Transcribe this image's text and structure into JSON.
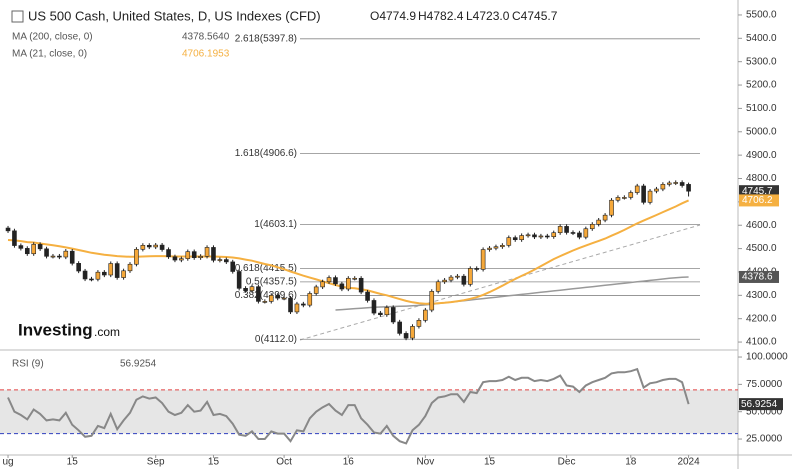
{
  "chart_data": {
    "type": "candlestick",
    "title": "US 500 Cash, United States, D, US Indexes (CFD)",
    "ohlc_header": [
      "O4774.9",
      "H4782.4",
      "L4723.0",
      "C4745.7"
    ],
    "up_color": "#f5a83a",
    "down_color": "#222222",
    "xlim": [
      -1.25,
      113.7
    ],
    "xticks": [
      {
        "value": 0,
        "label": "ug"
      },
      {
        "value": 10,
        "label": "15"
      },
      {
        "value": 23,
        "label": "Sep"
      },
      {
        "value": 32,
        "label": "15"
      },
      {
        "value": 43,
        "label": "Oct"
      },
      {
        "value": 53,
        "label": "16"
      },
      {
        "value": 65,
        "label": "Nov"
      },
      {
        "value": 75,
        "label": "15"
      },
      {
        "value": 87,
        "label": "Dec"
      },
      {
        "value": 97,
        "label": "18"
      },
      {
        "value": 106,
        "label": "2024"
      }
    ],
    "ylim": [
      4066,
      5564
    ],
    "yticks": [
      {
        "value": 5500,
        "label": "5500.0"
      },
      {
        "value": 5400,
        "label": "5400.0"
      },
      {
        "value": 5300,
        "label": "5300.0"
      },
      {
        "value": 5200,
        "label": "5200.0"
      },
      {
        "value": 5100,
        "label": "5100.0"
      },
      {
        "value": 5000,
        "label": "5000.0"
      },
      {
        "value": 4900,
        "label": "4900.0"
      },
      {
        "value": 4800,
        "label": "4800.0"
      },
      {
        "value": 4700,
        "label": "4700.0"
      },
      {
        "value": 4600,
        "label": "4600.0"
      },
      {
        "value": 4500,
        "label": "4500.0"
      },
      {
        "value": 4400,
        "label": "4400.0"
      },
      {
        "value": 4300,
        "label": "4300.0"
      },
      {
        "value": 4200,
        "label": "4200.0"
      },
      {
        "value": 4100,
        "label": "4100.0"
      }
    ],
    "open": [
      4588,
      4576,
      4513,
      4501,
      4478,
      4518,
      4499,
      4467,
      4468,
      4464,
      4489,
      4437,
      4404,
      4370,
      4369,
      4399,
      4387,
      4436,
      4376,
      4405,
      4433,
      4497,
      4514,
      4507,
      4515,
      4496,
      4465,
      4451,
      4457,
      4487,
      4461,
      4467,
      4505,
      4450,
      4453,
      4443,
      4402,
      4330,
      4320,
      4337,
      4274,
      4274,
      4300,
      4288,
      4288,
      4229,
      4263,
      4258,
      4308,
      4336,
      4358,
      4376,
      4349,
      4327,
      4373,
      4373,
      4314,
      4278,
      4224,
      4217,
      4248,
      4186,
      4137,
      4117,
      4167,
      4193,
      4237,
      4317,
      4358,
      4365,
      4378,
      4382,
      4347,
      4415,
      4411,
      4496,
      4502,
      4508,
      4514,
      4547,
      4538,
      4556,
      4559,
      4550,
      4554,
      4551,
      4568,
      4595,
      4569,
      4567,
      4549,
      4585,
      4604,
      4622,
      4643,
      4707,
      4719,
      4719,
      4740,
      4768,
      4698,
      4746,
      4755,
      4775,
      4781,
      4783,
      4774.9
    ],
    "high": [
      4597,
      4585,
      4522,
      4510,
      4527,
      4527,
      4508,
      4477,
      4477,
      4498,
      4498,
      4446,
      4413,
      4379,
      4408,
      4408,
      4445,
      4445,
      4414,
      4442,
      4506,
      4523,
      4523,
      4524,
      4524,
      4505,
      4474,
      4466,
      4496,
      4496,
      4476,
      4514,
      4514,
      4462,
      4462,
      4452,
      4411,
      4339,
      4346,
      4346,
      4283,
      4309,
      4309,
      4297,
      4297,
      4272,
      4272,
      4317,
      4345,
      4367,
      4385,
      4385,
      4358,
      4382,
      4382,
      4382,
      4323,
      4287,
      4233,
      4257,
      4257,
      4195,
      4146,
      4176,
      4202,
      4246,
      4326,
      4367,
      4374,
      4387,
      4391,
      4391,
      4424,
      4424,
      4505,
      4511,
      4517,
      4523,
      4556,
      4556,
      4565,
      4568,
      4568,
      4563,
      4563,
      4577,
      4604,
      4604,
      4578,
      4576,
      4594,
      4613,
      4631,
      4652,
      4716,
      4728,
      4728,
      4749,
      4777,
      4777,
      4755,
      4764,
      4784,
      4790,
      4792,
      4792,
      4782.4
    ],
    "low": [
      4567,
      4504,
      4492,
      4469,
      4469,
      4490,
      4458,
      4458,
      4455,
      4455,
      4428,
      4395,
      4361,
      4360,
      4360,
      4378,
      4378,
      4367,
      4367,
      4396,
      4424,
      4488,
      4498,
      4498,
      4487,
      4456,
      4442,
      4442,
      4448,
      4452,
      4452,
      4458,
      4441,
      4441,
      4434,
      4393,
      4321,
      4311,
      4311,
      4265,
      4265,
      4265,
      4279,
      4279,
      4220,
      4220,
      4249,
      4249,
      4299,
      4327,
      4349,
      4340,
      4318,
      4318,
      4364,
      4305,
      4269,
      4215,
      4208,
      4208,
      4177,
      4128,
      4108,
      4108,
      4158,
      4184,
      4228,
      4308,
      4349,
      4356,
      4369,
      4338,
      4338,
      4402,
      4402,
      4487,
      4493,
      4499,
      4505,
      4529,
      4529,
      4547,
      4541,
      4541,
      4542,
      4542,
      4559,
      4560,
      4558,
      4540,
      4540,
      4576,
      4595,
      4613,
      4634,
      4698,
      4710,
      4710,
      4731,
      4689,
      4689,
      4737,
      4746,
      4766,
      4772,
      4761,
      4723.0
    ],
    "close": [
      4576,
      4513,
      4501,
      4478,
      4518,
      4499,
      4467,
      4468,
      4464,
      4489,
      4437,
      4404,
      4370,
      4369,
      4399,
      4387,
      4436,
      4376,
      4405,
      4433,
      4497,
      4514,
      4507,
      4515,
      4496,
      4465,
      4451,
      4457,
      4487,
      4461,
      4467,
      4505,
      4450,
      4453,
      4443,
      4402,
      4330,
      4320,
      4337,
      4274,
      4274,
      4300,
      4288,
      4288,
      4229,
      4263,
      4258,
      4308,
      4336,
      4358,
      4376,
      4349,
      4327,
      4373,
      4373,
      4314,
      4278,
      4224,
      4217,
      4248,
      4186,
      4137,
      4117,
      4167,
      4193,
      4237,
      4317,
      4358,
      4365,
      4378,
      4382,
      4347,
      4415,
      4411,
      4496,
      4502,
      4508,
      4514,
      4547,
      4538,
      4556,
      4559,
      4550,
      4554,
      4551,
      4568,
      4595,
      4569,
      4567,
      4549,
      4585,
      4604,
      4622,
      4643,
      4707,
      4719,
      4719,
      4740,
      4768,
      4698,
      4746,
      4755,
      4775,
      4781,
      4783,
      4770,
      4745.7
    ],
    "price_tag": {
      "value": 4745.7,
      "label": "4745.7"
    },
    "series": [
      {
        "name": "MA (200, close, 0)",
        "last": "4378.5640",
        "tag": {
          "value": 4378.6,
          "label": "4378.6"
        },
        "color": "#999999",
        "values": [
          null,
          null,
          null,
          null,
          null,
          null,
          null,
          null,
          null,
          null,
          null,
          null,
          null,
          null,
          null,
          null,
          null,
          null,
          null,
          null,
          null,
          null,
          null,
          null,
          null,
          null,
          null,
          null,
          null,
          null,
          null,
          null,
          null,
          null,
          null,
          null,
          null,
          null,
          null,
          null,
          null,
          null,
          null,
          null,
          null,
          null,
          null,
          null,
          null,
          null,
          null,
          4237,
          4239,
          4241,
          4243,
          4245,
          4247,
          4249,
          4250,
          4251,
          4252,
          4253,
          4254,
          4255,
          4257,
          4259,
          4262,
          4265,
          4268,
          4271,
          4274,
          4277,
          4280,
          4283,
          4286,
          4289,
          4292,
          4295,
          4298,
          4301,
          4304,
          4307,
          4310,
          4313,
          4316,
          4319,
          4322,
          4325,
          4328,
          4331,
          4334,
          4337,
          4340,
          4343,
          4346,
          4349,
          4352,
          4355,
          4358,
          4361,
          4364,
          4367,
          4370,
          4373,
          4375,
          4377,
          4378.6
        ]
      },
      {
        "name": "MA (21, close, 0)",
        "last": "4706.1953",
        "tag": {
          "value": 4706.2,
          "label": "4706.2"
        },
        "color": "#f5b041",
        "values": [
          4537,
          4535,
          4532,
          4528,
          4526,
          4522,
          4518,
          4514,
          4510,
          4505,
          4500,
          4494,
          4488,
          4482,
          4478,
          4474,
          4471,
          4468,
          4466,
          4465,
          4465,
          4466,
          4467,
          4468,
          4468,
          4467,
          4466,
          4466,
          4466,
          4466,
          4466,
          4466,
          4466,
          4465,
          4464,
          4462,
          4458,
          4453,
          4448,
          4441,
          4434,
          4428,
          4420,
          4412,
          4402,
          4393,
          4384,
          4376,
          4368,
          4360,
          4352,
          4344,
          4337,
          4332,
          4330,
          4326,
          4321,
          4314,
          4306,
          4300,
          4292,
          4284,
          4276,
          4270,
          4266,
          4264,
          4264,
          4266,
          4268,
          4271,
          4275,
          4279,
          4285,
          4292,
          4302,
          4314,
          4327,
          4341,
          4356,
          4370,
          4383,
          4396,
          4410,
          4425,
          4440,
          4455,
          4468,
          4480,
          4492,
          4503,
          4513,
          4523,
          4533,
          4543,
          4555,
          4567,
          4580,
          4594,
          4608,
          4620,
          4632,
          4644,
          4656,
          4668,
          4680,
          4694,
          4706.2
        ]
      }
    ],
    "fib_levels": [
      {
        "value": 5397.8,
        "label": "2.618(5397.8)"
      },
      {
        "value": 4906.6,
        "label": "1.618(4906.6)"
      },
      {
        "value": 4603.1,
        "label": "1(4603.1)"
      },
      {
        "value": 4415.5,
        "label": "0.618(4415.5)"
      },
      {
        "value": 4357.5,
        "label": "0.5(4357.5)"
      },
      {
        "value": 4299.6,
        "label": "0.382(4299.6)"
      },
      {
        "value": 4112.0,
        "label": "0(4112.0)"
      }
    ],
    "rsi": {
      "name": "RSI (9)",
      "last": "56.9254",
      "color": "#888888",
      "tag": {
        "value": 56.9254,
        "label": "56.9254"
      },
      "overbought": 70,
      "oversold": 30,
      "ylim": [
        10.4,
        104.6
      ],
      "yticks": [
        {
          "value": 100,
          "label": "100.0000"
        },
        {
          "value": 75,
          "label": "75.0000"
        },
        {
          "value": 50,
          "label": "50.0000"
        },
        {
          "value": 25,
          "label": "25.0000"
        }
      ],
      "values": [
        63,
        50,
        47,
        43,
        52,
        48,
        42,
        43,
        42,
        49,
        38,
        33,
        27,
        28,
        37,
        35,
        48,
        34,
        42,
        49,
        61,
        64,
        62,
        63,
        58,
        50,
        47,
        49,
        56,
        50,
        51,
        59,
        47,
        48,
        46,
        39,
        29,
        28,
        32,
        25,
        25,
        32,
        30,
        30,
        23,
        33,
        32,
        44,
        50,
        54,
        57,
        51,
        47,
        56,
        56,
        44,
        38,
        31,
        30,
        37,
        28,
        23,
        21,
        33,
        38,
        46,
        58,
        63,
        64,
        66,
        66,
        59,
        68,
        67,
        77,
        78,
        78,
        79,
        82,
        79,
        81,
        81,
        78,
        79,
        78,
        80,
        83,
        74,
        73,
        68,
        74,
        77,
        79,
        81,
        85,
        86,
        86,
        87,
        89,
        72,
        76,
        77,
        79,
        80,
        80,
        77,
        56.9254
      ]
    },
    "logo": {
      "brand": "Investing",
      "suffix": ".com"
    }
  }
}
